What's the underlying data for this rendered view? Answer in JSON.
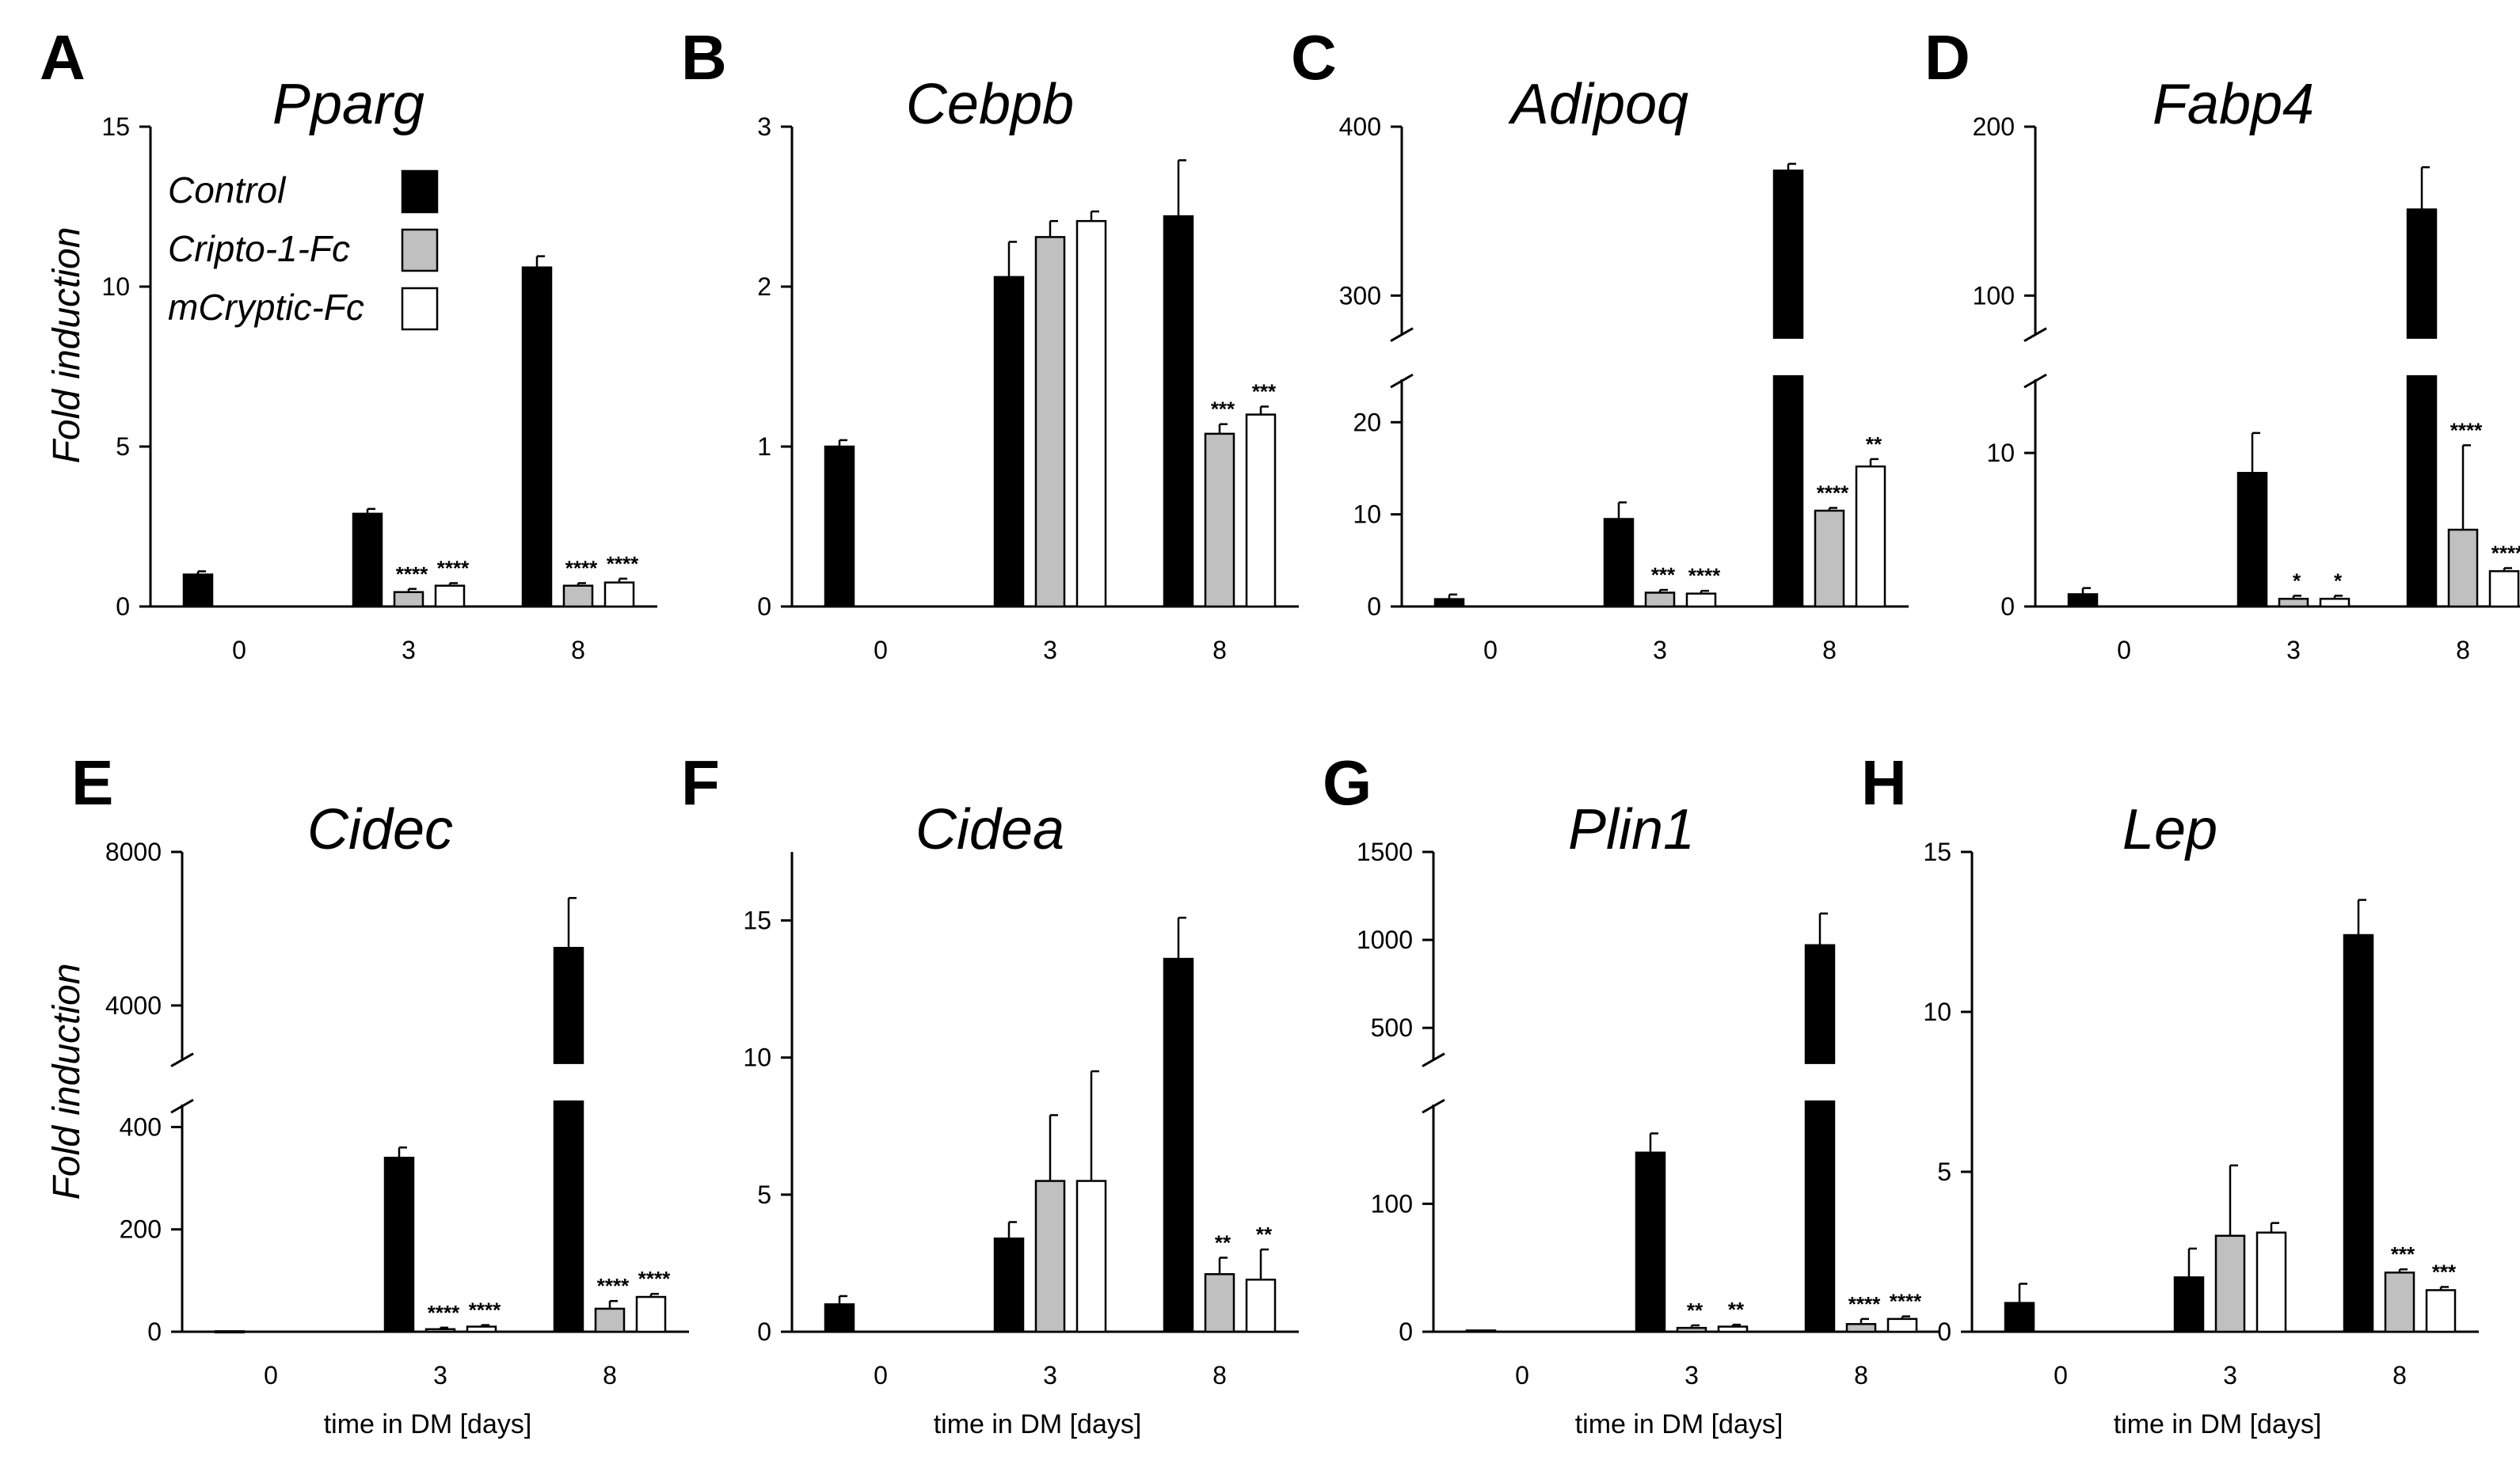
{
  "figure": {
    "ylabel": "Fold induction",
    "xlabel": "time in DM [days]",
    "colors": {
      "Control": "#000000",
      "Cripto-1-Fc": "#c0c0c0",
      "mCryptic-Fc": "#ffffff"
    }
  },
  "legend": [
    "Control",
    "Cripto-1-Fc",
    "mCryptic-Fc"
  ],
  "chart_data": [
    {
      "type": "bar",
      "panel": "A",
      "title": "Pparg",
      "categories": [
        "0",
        "3",
        "8"
      ],
      "ylim": [
        0,
        15
      ],
      "yticks": [
        0,
        5,
        10,
        15
      ],
      "series": [
        {
          "name": "Control",
          "values": [
            1.0,
            2.9,
            10.6
          ],
          "errors": [
            0.1,
            0.15,
            0.35
          ]
        },
        {
          "name": "Cripto-1-Fc",
          "values": [
            null,
            0.45,
            0.65
          ],
          "errors": [
            null,
            0.1,
            0.08
          ]
        },
        {
          "name": "mCryptic-Fc",
          "values": [
            null,
            0.65,
            0.75
          ],
          "errors": [
            null,
            0.08,
            0.12
          ]
        }
      ],
      "significance": [
        [
          "",
          "",
          ""
        ],
        [
          "",
          "****",
          "****"
        ],
        [
          "",
          "****",
          "****"
        ]
      ]
    },
    {
      "type": "bar",
      "panel": "B",
      "title": "Cebpb",
      "categories": [
        "0",
        "3",
        "8"
      ],
      "ylim": [
        0,
        3
      ],
      "yticks": [
        0,
        1,
        2,
        3
      ],
      "series": [
        {
          "name": "Control",
          "values": [
            1.0,
            2.06,
            2.44
          ],
          "errors": [
            0.04,
            0.22,
            0.35
          ]
        },
        {
          "name": "Cripto-1-Fc",
          "values": [
            null,
            2.31,
            1.08
          ],
          "errors": [
            null,
            0.1,
            0.06
          ]
        },
        {
          "name": "mCryptic-Fc",
          "values": [
            null,
            2.41,
            1.2
          ],
          "errors": [
            null,
            0.06,
            0.05
          ]
        }
      ],
      "significance": [
        [
          "",
          "",
          ""
        ],
        [
          "",
          "",
          ""
        ],
        [
          "",
          "***",
          "***"
        ]
      ]
    },
    {
      "type": "bar",
      "panel": "C",
      "title": "Adipoq",
      "categories": [
        "0",
        "3",
        "8"
      ],
      "ylim_lower": [
        0,
        25
      ],
      "yticks_lower": [
        0,
        10,
        20
      ],
      "ylim_upper": [
        275,
        400
      ],
      "yticks_upper": [
        300,
        400
      ],
      "series": [
        {
          "name": "Control",
          "values": [
            0.8,
            9.5,
            374
          ],
          "errors": [
            0.5,
            1.8,
            4
          ]
        },
        {
          "name": "Cripto-1-Fc",
          "values": [
            null,
            1.5,
            10.4
          ],
          "errors": [
            null,
            0.3,
            0.3
          ]
        },
        {
          "name": "mCryptic-Fc",
          "values": [
            null,
            1.4,
            15.2
          ],
          "errors": [
            null,
            0.3,
            0.8
          ]
        }
      ],
      "significance": [
        [
          "",
          "",
          ""
        ],
        [
          "",
          "***",
          "****"
        ],
        [
          "",
          "****",
          "**"
        ]
      ]
    },
    {
      "type": "bar",
      "panel": "D",
      "title": "Fabp4",
      "categories": [
        "0",
        "3",
        "8"
      ],
      "ylim_lower": [
        0,
        15
      ],
      "yticks_lower": [
        0,
        10
      ],
      "ylim_upper": [
        75,
        200
      ],
      "yticks_upper": [
        100,
        200
      ],
      "series": [
        {
          "name": "Control",
          "values": [
            0.8,
            8.7,
            151
          ],
          "errors": [
            0.4,
            2.6,
            25
          ]
        },
        {
          "name": "Cripto-1-Fc",
          "values": [
            null,
            0.5,
            5.0
          ],
          "errors": [
            null,
            0.2,
            5.5
          ]
        },
        {
          "name": "mCryptic-Fc",
          "values": [
            null,
            0.5,
            2.3
          ],
          "errors": [
            null,
            0.2,
            0.2
          ]
        }
      ],
      "significance": [
        [
          "",
          "",
          ""
        ],
        [
          "",
          "*",
          "*"
        ],
        [
          "",
          "****",
          "****"
        ]
      ]
    },
    {
      "type": "bar",
      "panel": "E",
      "title": "Cidec",
      "categories": [
        "0",
        "3",
        "8"
      ],
      "ylim_lower": [
        0,
        450
      ],
      "yticks_lower": [
        0,
        200,
        400
      ],
      "ylim_upper": [
        2500,
        8000
      ],
      "yticks_upper": [
        4000,
        8000
      ],
      "series": [
        {
          "name": "Control",
          "values": [
            1,
            340,
            5500
          ],
          "errors": [
            0,
            20,
            1300
          ]
        },
        {
          "name": "Cripto-1-Fc",
          "values": [
            null,
            5,
            45
          ],
          "errors": [
            null,
            3,
            15
          ]
        },
        {
          "name": "mCryptic-Fc",
          "values": [
            null,
            10,
            68
          ],
          "errors": [
            null,
            3,
            6
          ]
        }
      ],
      "significance": [
        [
          "",
          "",
          ""
        ],
        [
          "",
          "****",
          "****"
        ],
        [
          "",
          "****",
          "****"
        ]
      ]
    },
    {
      "type": "bar",
      "panel": "F",
      "title": "Cidea",
      "categories": [
        "0",
        "3",
        "8"
      ],
      "ylim": [
        0,
        17.5
      ],
      "yticks": [
        0,
        5,
        10,
        15
      ],
      "series": [
        {
          "name": "Control",
          "values": [
            1.0,
            3.4,
            13.6
          ],
          "errors": [
            0.3,
            0.6,
            1.5
          ]
        },
        {
          "name": "Cripto-1-Fc",
          "values": [
            null,
            5.5,
            2.1
          ],
          "errors": [
            null,
            2.4,
            0.6
          ]
        },
        {
          "name": "mCryptic-Fc",
          "values": [
            null,
            5.5,
            1.9
          ],
          "errors": [
            null,
            4.0,
            1.1
          ]
        }
      ],
      "significance": [
        [
          "",
          "",
          ""
        ],
        [
          "",
          "",
          ""
        ],
        [
          "",
          "**",
          "**"
        ]
      ]
    },
    {
      "type": "bar",
      "panel": "G",
      "title": "Plin1",
      "categories": [
        "0",
        "3",
        "8"
      ],
      "ylim_lower": [
        0,
        180
      ],
      "yticks_lower": [
        0,
        100
      ],
      "ylim_upper": [
        300,
        1500
      ],
      "yticks_upper": [
        500,
        1000,
        1500
      ],
      "series": [
        {
          "name": "Control",
          "values": [
            1,
            140,
            970
          ],
          "errors": [
            0,
            15,
            180
          ]
        },
        {
          "name": "Cripto-1-Fc",
          "values": [
            null,
            3,
            6
          ],
          "errors": [
            null,
            2,
            4
          ]
        },
        {
          "name": "mCryptic-Fc",
          "values": [
            null,
            4,
            10
          ],
          "errors": [
            null,
            1.5,
            2
          ]
        }
      ],
      "significance": [
        [
          "",
          "",
          ""
        ],
        [
          "",
          "**",
          "**"
        ],
        [
          "",
          "****",
          "****"
        ]
      ]
    },
    {
      "type": "bar",
      "panel": "H",
      "title": "Lep",
      "categories": [
        "0",
        "3",
        "8"
      ],
      "ylim": [
        0,
        15
      ],
      "yticks": [
        0,
        5,
        10,
        15
      ],
      "series": [
        {
          "name": "Control",
          "values": [
            0.9,
            1.7,
            12.4
          ],
          "errors": [
            0.6,
            0.9,
            1.1
          ]
        },
        {
          "name": "Cripto-1-Fc",
          "values": [
            null,
            3.0,
            1.85
          ],
          "errors": [
            null,
            2.2,
            0.1
          ]
        },
        {
          "name": "mCryptic-Fc",
          "values": [
            null,
            3.1,
            1.3
          ],
          "errors": [
            null,
            0.3,
            0.1
          ]
        }
      ],
      "significance": [
        [
          "",
          "",
          ""
        ],
        [
          "",
          "",
          ""
        ],
        [
          "",
          "***",
          "***"
        ]
      ]
    }
  ]
}
